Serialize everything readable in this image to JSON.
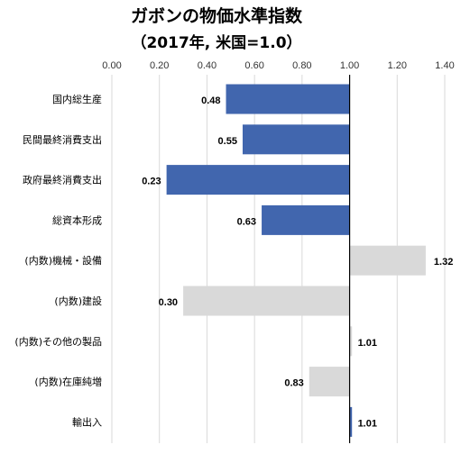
{
  "chart_data": {
    "type": "bar",
    "orientation": "horizontal",
    "title": "ガボンの物価水準指数",
    "subtitle": "（2017年, 米国=1.0）",
    "categories": [
      "国内総生産",
      "民間最終消費支出",
      "政府最終消費支出",
      "総資本形成",
      "(内数)機械・設備",
      "(内数)建設",
      "(内数)その他の製品",
      "(内数)在庫純増",
      "輸出入"
    ],
    "values": [
      0.48,
      0.55,
      0.23,
      0.63,
      1.32,
      0.3,
      1.01,
      0.83,
      1.01
    ],
    "value_labels": [
      "0.48",
      "0.55",
      "0.23",
      "0.63",
      "1.32",
      "0.30",
      "1.01",
      "0.83",
      "1.01"
    ],
    "bar_colors": [
      "#4166ae",
      "#4166ae",
      "#4166ae",
      "#4166ae",
      "#d9d9d9",
      "#d9d9d9",
      "#d9d9d9",
      "#d9d9d9",
      "#4166ae"
    ],
    "baseline": 1.0,
    "xlim": [
      0,
      1.4
    ],
    "xticks": [
      "0.00",
      "0.20",
      "0.40",
      "0.60",
      "0.80",
      "1.00",
      "1.20",
      "1.40"
    ],
    "xaxis_position": "top",
    "grid": true,
    "legend": "none"
  }
}
